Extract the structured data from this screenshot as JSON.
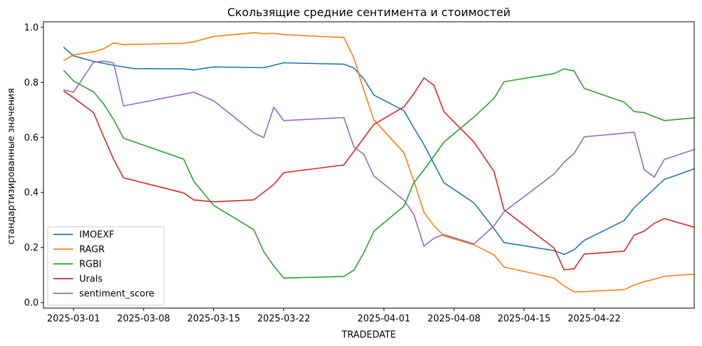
{
  "chart_data": {
    "type": "line",
    "title": "Скользящие средние сентимента и стоимостей",
    "xlabel": "TRADEDATE",
    "ylabel": "стандартизированные значения",
    "x_ticks": [
      "2025-03-01",
      "2025-03-08",
      "2025-03-15",
      "2025-03-22",
      "2025-04-01",
      "2025-04-08",
      "2025-04-15",
      "2025-04-22"
    ],
    "y_ticks": [
      "0.0",
      "0.2",
      "0.4",
      "0.6",
      "0.8",
      "1.0"
    ],
    "ylim": [
      -0.02,
      1.02
    ],
    "xlim": [
      "2025-02-26",
      "2025-05-02"
    ],
    "grid": false,
    "legend_position": "lower-left",
    "series": [
      {
        "name": "IMOEXF",
        "color": "#1f77b4",
        "points": [
          [
            "2025-02-28",
            0.928
          ],
          [
            "2025-03-01",
            0.896
          ],
          [
            "2025-03-03",
            0.876
          ],
          [
            "2025-03-05",
            0.862
          ],
          [
            "2025-03-07",
            0.85
          ],
          [
            "2025-03-12",
            0.849
          ],
          [
            "2025-03-13",
            0.845
          ],
          [
            "2025-03-15",
            0.856
          ],
          [
            "2025-03-20",
            0.853
          ],
          [
            "2025-03-22",
            0.871
          ],
          [
            "2025-03-28",
            0.866
          ],
          [
            "2025-03-29",
            0.852
          ],
          [
            "2025-03-30",
            0.812
          ],
          [
            "2025-03-31",
            0.754
          ],
          [
            "2025-04-03",
            0.697
          ],
          [
            "2025-04-04",
            0.634
          ],
          [
            "2025-04-05",
            0.574
          ],
          [
            "2025-04-07",
            0.435
          ],
          [
            "2025-04-10",
            0.362
          ],
          [
            "2025-04-12",
            0.268
          ],
          [
            "2025-04-13",
            0.218
          ],
          [
            "2025-04-18",
            0.189
          ],
          [
            "2025-04-19",
            0.175
          ],
          [
            "2025-04-20",
            0.192
          ],
          [
            "2025-04-21",
            0.226
          ],
          [
            "2025-04-25",
            0.298
          ],
          [
            "2025-04-26",
            0.345
          ],
          [
            "2025-04-29",
            0.447
          ],
          [
            "2025-05-02",
            0.486
          ]
        ]
      },
      {
        "name": "RAGR",
        "color": "#ff7f0e",
        "points": [
          [
            "2025-02-28",
            0.879
          ],
          [
            "2025-03-01",
            0.9
          ],
          [
            "2025-03-03",
            0.911
          ],
          [
            "2025-03-04",
            0.922
          ],
          [
            "2025-03-05",
            0.943
          ],
          [
            "2025-03-06",
            0.937
          ],
          [
            "2025-03-12",
            0.942
          ],
          [
            "2025-03-13",
            0.947
          ],
          [
            "2025-03-15",
            0.967
          ],
          [
            "2025-03-19",
            0.98
          ],
          [
            "2025-03-20",
            0.977
          ],
          [
            "2025-03-21",
            0.978
          ],
          [
            "2025-03-22",
            0.973
          ],
          [
            "2025-03-28",
            0.963
          ],
          [
            "2025-03-29",
            0.888
          ],
          [
            "2025-03-30",
            0.771
          ],
          [
            "2025-03-31",
            0.664
          ],
          [
            "2025-04-03",
            0.544
          ],
          [
            "2025-04-04",
            0.441
          ],
          [
            "2025-04-05",
            0.328
          ],
          [
            "2025-04-06",
            0.279
          ],
          [
            "2025-04-07",
            0.242
          ],
          [
            "2025-04-10",
            0.21
          ],
          [
            "2025-04-12",
            0.173
          ],
          [
            "2025-04-13",
            0.129
          ],
          [
            "2025-04-18",
            0.089
          ],
          [
            "2025-04-19",
            0.06
          ],
          [
            "2025-04-20",
            0.039
          ],
          [
            "2025-04-21",
            0.04
          ],
          [
            "2025-04-25",
            0.047
          ],
          [
            "2025-04-26",
            0.064
          ],
          [
            "2025-04-27",
            0.076
          ],
          [
            "2025-04-28",
            0.085
          ],
          [
            "2025-04-29",
            0.096
          ],
          [
            "2025-05-02",
            0.103
          ]
        ]
      },
      {
        "name": "RGBI",
        "color": "#2ca02c",
        "points": [
          [
            "2025-02-28",
            0.844
          ],
          [
            "2025-03-01",
            0.805
          ],
          [
            "2025-03-03",
            0.765
          ],
          [
            "2025-03-04",
            0.722
          ],
          [
            "2025-03-05",
            0.665
          ],
          [
            "2025-03-06",
            0.597
          ],
          [
            "2025-03-12",
            0.521
          ],
          [
            "2025-03-13",
            0.441
          ],
          [
            "2025-03-15",
            0.353
          ],
          [
            "2025-03-19",
            0.265
          ],
          [
            "2025-03-20",
            0.185
          ],
          [
            "2025-03-21",
            0.133
          ],
          [
            "2025-03-22",
            0.089
          ],
          [
            "2025-03-28",
            0.095
          ],
          [
            "2025-03-29",
            0.118
          ],
          [
            "2025-03-30",
            0.181
          ],
          [
            "2025-03-31",
            0.259
          ],
          [
            "2025-04-03",
            0.35
          ],
          [
            "2025-04-04",
            0.436
          ],
          [
            "2025-04-05",
            0.482
          ],
          [
            "2025-04-07",
            0.583
          ],
          [
            "2025-04-10",
            0.674
          ],
          [
            "2025-04-12",
            0.742
          ],
          [
            "2025-04-13",
            0.802
          ],
          [
            "2025-04-18",
            0.832
          ],
          [
            "2025-04-19",
            0.849
          ],
          [
            "2025-04-20",
            0.841
          ],
          [
            "2025-04-21",
            0.778
          ],
          [
            "2025-04-25",
            0.728
          ],
          [
            "2025-04-26",
            0.694
          ],
          [
            "2025-04-27",
            0.69
          ],
          [
            "2025-04-29",
            0.661
          ],
          [
            "2025-05-02",
            0.671
          ]
        ]
      },
      {
        "name": "Urals",
        "color": "#d62728",
        "points": [
          [
            "2025-02-28",
            0.769
          ],
          [
            "2025-03-01",
            0.744
          ],
          [
            "2025-03-03",
            0.69
          ],
          [
            "2025-03-04",
            0.603
          ],
          [
            "2025-03-05",
            0.521
          ],
          [
            "2025-03-06",
            0.453
          ],
          [
            "2025-03-12",
            0.398
          ],
          [
            "2025-03-13",
            0.373
          ],
          [
            "2025-03-15",
            0.366
          ],
          [
            "2025-03-19",
            0.373
          ],
          [
            "2025-03-21",
            0.429
          ],
          [
            "2025-03-22",
            0.472
          ],
          [
            "2025-03-28",
            0.5
          ],
          [
            "2025-03-31",
            0.647
          ],
          [
            "2025-04-03",
            0.711
          ],
          [
            "2025-04-04",
            0.759
          ],
          [
            "2025-04-05",
            0.816
          ],
          [
            "2025-04-06",
            0.789
          ],
          [
            "2025-04-07",
            0.693
          ],
          [
            "2025-04-10",
            0.583
          ],
          [
            "2025-04-12",
            0.476
          ],
          [
            "2025-04-13",
            0.337
          ],
          [
            "2025-04-18",
            0.198
          ],
          [
            "2025-04-19",
            0.119
          ],
          [
            "2025-04-20",
            0.123
          ],
          [
            "2025-04-21",
            0.176
          ],
          [
            "2025-04-25",
            0.187
          ],
          [
            "2025-04-26",
            0.245
          ],
          [
            "2025-04-27",
            0.26
          ],
          [
            "2025-04-28",
            0.288
          ],
          [
            "2025-04-29",
            0.305
          ],
          [
            "2025-05-02",
            0.274
          ]
        ]
      },
      {
        "name": "sentiment_score",
        "color": "#9467bd",
        "points": [
          [
            "2025-02-28",
            0.773
          ],
          [
            "2025-03-01",
            0.764
          ],
          [
            "2025-03-03",
            0.873
          ],
          [
            "2025-03-04",
            0.877
          ],
          [
            "2025-03-05",
            0.871
          ],
          [
            "2025-03-06",
            0.714
          ],
          [
            "2025-03-13",
            0.764
          ],
          [
            "2025-03-15",
            0.733
          ],
          [
            "2025-03-19",
            0.617
          ],
          [
            "2025-03-20",
            0.599
          ],
          [
            "2025-03-21",
            0.71
          ],
          [
            "2025-03-22",
            0.661
          ],
          [
            "2025-03-28",
            0.672
          ],
          [
            "2025-03-29",
            0.566
          ],
          [
            "2025-03-30",
            0.538
          ],
          [
            "2025-03-31",
            0.46
          ],
          [
            "2025-04-03",
            0.372
          ],
          [
            "2025-04-04",
            0.32
          ],
          [
            "2025-04-05",
            0.205
          ],
          [
            "2025-04-06",
            0.234
          ],
          [
            "2025-04-07",
            0.247
          ],
          [
            "2025-04-10",
            0.213
          ],
          [
            "2025-04-12",
            0.279
          ],
          [
            "2025-04-13",
            0.33
          ],
          [
            "2025-04-18",
            0.467
          ],
          [
            "2025-04-19",
            0.51
          ],
          [
            "2025-04-20",
            0.542
          ],
          [
            "2025-04-21",
            0.602
          ],
          [
            "2025-04-26",
            0.619
          ],
          [
            "2025-04-27",
            0.483
          ],
          [
            "2025-04-28",
            0.456
          ],
          [
            "2025-04-29",
            0.52
          ],
          [
            "2025-05-02",
            0.556
          ]
        ]
      }
    ]
  }
}
